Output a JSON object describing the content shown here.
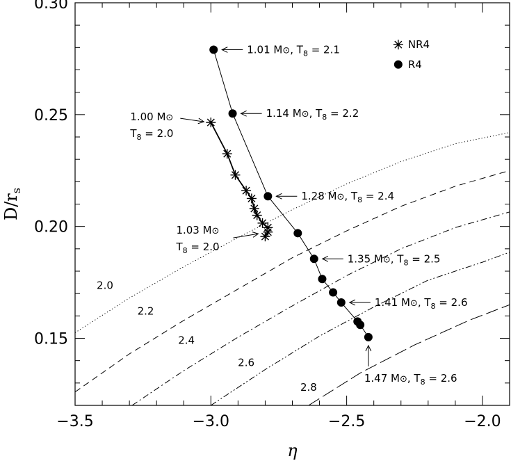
{
  "chart_data": {
    "type": "scatter",
    "xlabel": "η",
    "ylabel": "D/r",
    "ylabel_sub": "s",
    "xlim": [
      -3.5,
      -1.9
    ],
    "ylim": [
      0.12,
      0.3
    ],
    "x_ticks": [
      -3.5,
      -3.0,
      -2.5,
      -2.0
    ],
    "x_tick_labels": [
      "−3.5",
      "−3.0",
      "−2.5",
      "−2.0"
    ],
    "y_ticks": [
      0.15,
      0.2,
      0.25,
      0.3
    ],
    "y_tick_labels": [
      "0.15",
      "0.20",
      "0.25",
      "0.30"
    ],
    "grid": false,
    "legend_position": "top-right",
    "series": [
      {
        "name": "NR4",
        "marker": "asterisk",
        "connected": true,
        "points": [
          {
            "x": -3.0,
            "y": 0.2465
          },
          {
            "x": -2.94,
            "y": 0.2325
          },
          {
            "x": -2.91,
            "y": 0.223
          },
          {
            "x": -2.87,
            "y": 0.216
          },
          {
            "x": -2.85,
            "y": 0.2125
          },
          {
            "x": -2.84,
            "y": 0.208
          },
          {
            "x": -2.83,
            "y": 0.205
          },
          {
            "x": -2.81,
            "y": 0.2015
          },
          {
            "x": -2.79,
            "y": 0.1995
          },
          {
            "x": -2.79,
            "y": 0.1975
          },
          {
            "x": -2.8,
            "y": 0.1955
          }
        ]
      },
      {
        "name": "R4",
        "marker": "filled-circle",
        "connected": true,
        "points": [
          {
            "x": -2.99,
            "y": 0.279
          },
          {
            "x": -2.92,
            "y": 0.2505
          },
          {
            "x": -2.79,
            "y": 0.2135
          },
          {
            "x": -2.68,
            "y": 0.197
          },
          {
            "x": -2.62,
            "y": 0.1855
          },
          {
            "x": -2.59,
            "y": 0.1765
          },
          {
            "x": -2.55,
            "y": 0.1705
          },
          {
            "x": -2.52,
            "y": 0.166
          },
          {
            "x": -2.46,
            "y": 0.1575
          },
          {
            "x": -2.45,
            "y": 0.156
          },
          {
            "x": -2.42,
            "y": 0.1505
          }
        ]
      }
    ],
    "contours": [
      {
        "label": "2.0",
        "style": "dotted",
        "points": [
          [
            -3.5,
            0.1525
          ],
          [
            -3.3,
            0.168
          ],
          [
            -3.1,
            0.182
          ],
          [
            -2.9,
            0.195
          ],
          [
            -2.7,
            0.2075
          ],
          [
            -2.5,
            0.219
          ],
          [
            -2.3,
            0.229
          ],
          [
            -2.1,
            0.237
          ],
          [
            -1.9,
            0.242
          ]
        ]
      },
      {
        "label": "2.2",
        "style": "dashed",
        "points": [
          [
            -3.5,
            0.126
          ],
          [
            -3.3,
            0.143
          ],
          [
            -3.1,
            0.158
          ],
          [
            -2.9,
            0.172
          ],
          [
            -2.7,
            0.186
          ],
          [
            -2.5,
            0.198
          ],
          [
            -2.3,
            0.209
          ],
          [
            -2.1,
            0.218
          ],
          [
            -1.9,
            0.225
          ]
        ]
      },
      {
        "label": "2.4",
        "style": "dash-dot",
        "points": [
          [
            -3.29,
            0.12
          ],
          [
            -3.1,
            0.1355
          ],
          [
            -2.9,
            0.1505
          ],
          [
            -2.7,
            0.1645
          ],
          [
            -2.5,
            0.178
          ],
          [
            -2.3,
            0.19
          ],
          [
            -2.1,
            0.1995
          ],
          [
            -1.9,
            0.2065
          ]
        ]
      },
      {
        "label": "2.6",
        "style": "dash-dot-dot",
        "points": [
          [
            -3.0,
            0.12
          ],
          [
            -2.8,
            0.136
          ],
          [
            -2.6,
            0.151
          ],
          [
            -2.4,
            0.164
          ],
          [
            -2.2,
            0.176
          ],
          [
            -2.0,
            0.184
          ],
          [
            -1.9,
            0.1885
          ]
        ]
      },
      {
        "label": "2.8",
        "style": "long-dash",
        "points": [
          [
            -2.64,
            0.12
          ],
          [
            -2.45,
            0.1345
          ],
          [
            -2.25,
            0.147
          ],
          [
            -2.05,
            0.158
          ],
          [
            -1.9,
            0.165
          ]
        ]
      }
    ],
    "contour_labels": [
      {
        "text": "2.0",
        "x": -3.39,
        "y": 0.172
      },
      {
        "text": "2.2",
        "x": -3.24,
        "y": 0.1605
      },
      {
        "text": "2.4",
        "x": -3.09,
        "y": 0.1475
      },
      {
        "text": "2.6",
        "x": -2.87,
        "y": 0.1375
      },
      {
        "text": "2.8",
        "x": -2.64,
        "y": 0.1265
      }
    ],
    "annotations": [
      {
        "mass": "1.01 M",
        "temp": "T",
        "sub": "8",
        "eq": " = 2.1",
        "arrow": "left",
        "x": -2.99,
        "y": 0.279
      },
      {
        "mass": "1.14 M",
        "temp": "T",
        "sub": "8",
        "eq": " = 2.2",
        "arrow": "left",
        "x": -2.92,
        "y": 0.2505
      },
      {
        "mass": "1.28 M",
        "temp": "T",
        "sub": "8",
        "eq": " = 2.4",
        "arrow": "left",
        "x": -2.79,
        "y": 0.2135
      },
      {
        "mass": "1.35 M",
        "temp": "T",
        "sub": "8",
        "eq": " = 2.5",
        "arrow": "left",
        "x": -2.62,
        "y": 0.1855
      },
      {
        "mass": "1.41 M",
        "temp": "T",
        "sub": "8",
        "eq": " = 2.6",
        "arrow": "left",
        "x": -2.52,
        "y": 0.166
      },
      {
        "mass": "1.47 M",
        "temp": "T",
        "sub": "8",
        "eq": " = 2.6",
        "arrow": "up",
        "x": -2.42,
        "y": 0.1505
      },
      {
        "mass": "1.00 M",
        "temp": "T",
        "sub": "8",
        "eq": " = 2.0",
        "arrow": "right",
        "x": -3.0,
        "y": 0.2465
      },
      {
        "mass": "1.03 M",
        "temp": "T",
        "sub": "8",
        "eq": " = 2.0",
        "arrow": "right",
        "x": -2.8,
        "y": 0.1955
      }
    ]
  }
}
